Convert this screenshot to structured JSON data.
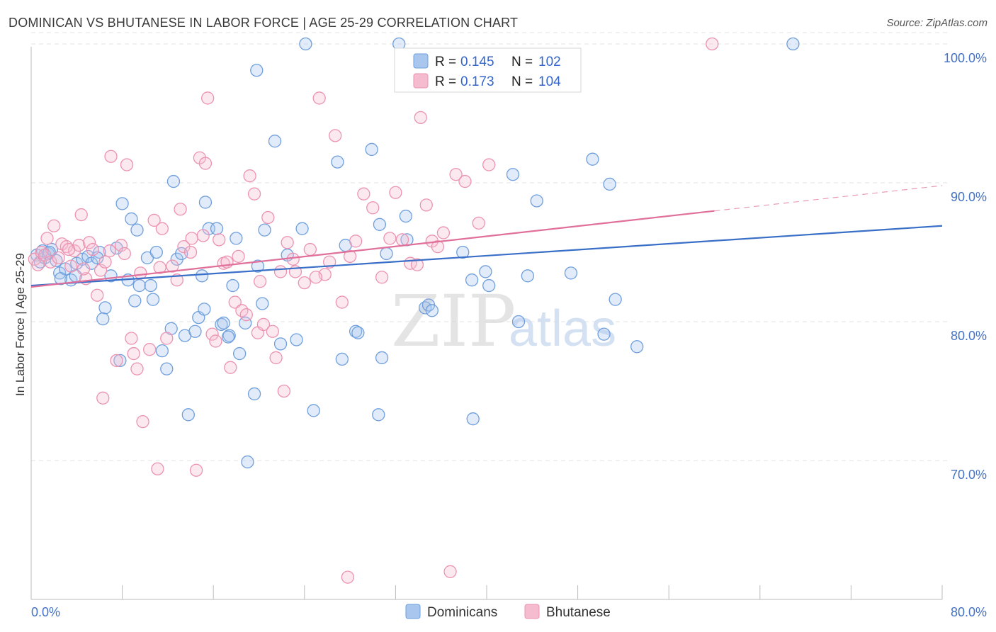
{
  "title": "DOMINICAN VS BHUTANESE IN LABOR FORCE | AGE 25-29 CORRELATION CHART",
  "source": "Source: ZipAtlas.com",
  "watermark": {
    "zip": "ZIP",
    "atlas": "atlas"
  },
  "colors": {
    "blue_fill": "#a9c7ee",
    "blue_stroke": "#6f9fdd",
    "blue_line": "#3a6fc8",
    "pink_fill": "#f5bcd0",
    "pink_stroke": "#ec93b2",
    "pink_line": "#e0709a",
    "grid": "#e3e3e3",
    "tick_text": "#4472c4"
  },
  "legend": {
    "r_label": "R =",
    "n_label": "N =",
    "rows": [
      {
        "series": "Dominicans",
        "r": "0.145",
        "n": "102"
      },
      {
        "series": "Bhutanese",
        "r": "0.173",
        "n": "104"
      }
    ]
  },
  "chart_data": {
    "type": "scatter",
    "title": "DOMINICAN VS BHUTANESE IN LABOR FORCE | AGE 25-29 CORRELATION CHART",
    "xlabel": "",
    "ylabel": "In Labor Force | Age 25-29",
    "xlim": [
      0,
      80
    ],
    "ylim": [
      60,
      100
    ],
    "x_tick_labels": [
      "0.0%",
      "80.0%"
    ],
    "y_ticks": [
      {
        "value": 70,
        "label": "70.0%"
      },
      {
        "value": 80,
        "label": "80.0%"
      },
      {
        "value": 90,
        "label": "90.0%"
      },
      {
        "value": 100,
        "label": "100.0%"
      }
    ],
    "grid": true,
    "legend_position": "top-center",
    "series": [
      {
        "name": "Dominicans",
        "trend": {
          "x": [
            0,
            80
          ],
          "y": [
            82.6,
            86.9
          ],
          "dashed_from": null
        },
        "points": [
          [
            0.5,
            84.8
          ],
          [
            0.8,
            84.3
          ],
          [
            1.0,
            85.1
          ],
          [
            1.2,
            84.6
          ],
          [
            1.5,
            84.9
          ],
          [
            1.8,
            85.2
          ],
          [
            2.2,
            84.4
          ],
          [
            2.5,
            83.5
          ],
          [
            3.0,
            83.8
          ],
          [
            3.5,
            83.0
          ],
          [
            4.0,
            84.2
          ],
          [
            4.5,
            84.5
          ],
          [
            5.0,
            84.7
          ],
          [
            5.3,
            84.2
          ],
          [
            6.0,
            85.0
          ],
          [
            6.5,
            81.0
          ],
          [
            7.0,
            83.3
          ],
          [
            7.5,
            85.3
          ],
          [
            6.3,
            80.2
          ],
          [
            8.0,
            88.5
          ],
          [
            8.5,
            83.0
          ],
          [
            8.8,
            87.4
          ],
          [
            9.3,
            86.6
          ],
          [
            9.5,
            82.6
          ],
          [
            10.2,
            84.6
          ],
          [
            10.5,
            82.6
          ],
          [
            10.7,
            81.6
          ],
          [
            11.0,
            85.0
          ],
          [
            11.5,
            77.9
          ],
          [
            11.9,
            76.6
          ],
          [
            7.8,
            77.2
          ],
          [
            12.5,
            90.1
          ],
          [
            12.3,
            79.5
          ],
          [
            12.8,
            84.5
          ],
          [
            13.2,
            84.9
          ],
          [
            13.5,
            79.0
          ],
          [
            13.8,
            73.3
          ],
          [
            14.4,
            79.3
          ],
          [
            14.7,
            80.3
          ],
          [
            15.0,
            83.3
          ],
          [
            15.3,
            88.6
          ],
          [
            15.2,
            80.9
          ],
          [
            15.6,
            86.7
          ],
          [
            16.3,
            86.7
          ],
          [
            16.7,
            79.8
          ],
          [
            16.9,
            79.9
          ],
          [
            17.4,
            79.0
          ],
          [
            17.7,
            82.6
          ],
          [
            18.0,
            86.0
          ],
          [
            18.3,
            77.7
          ],
          [
            18.8,
            79.9
          ],
          [
            19.0,
            69.9
          ],
          [
            19.6,
            74.8
          ],
          [
            19.9,
            84.0
          ],
          [
            20.3,
            81.3
          ],
          [
            20.5,
            86.6
          ],
          [
            21.4,
            93.0
          ],
          [
            21.9,
            78.4
          ],
          [
            22.5,
            84.8
          ],
          [
            23.3,
            78.7
          ],
          [
            23.8,
            86.7
          ],
          [
            24.1,
            100.0
          ],
          [
            24.8,
            73.6
          ],
          [
            26.9,
            91.5
          ],
          [
            27.3,
            77.3
          ],
          [
            27.6,
            85.5
          ],
          [
            28.5,
            79.3
          ],
          [
            28.7,
            79.2
          ],
          [
            29.9,
            92.4
          ],
          [
            30.5,
            73.3
          ],
          [
            30.6,
            87.0
          ],
          [
            30.8,
            77.4
          ],
          [
            31.2,
            84.9
          ],
          [
            32.3,
            100.0
          ],
          [
            33.0,
            85.9
          ],
          [
            32.9,
            87.6
          ],
          [
            34.6,
            81.0
          ],
          [
            34.9,
            81.2
          ],
          [
            35.2,
            80.8
          ],
          [
            37.9,
            85.0
          ],
          [
            38.7,
            83.0
          ],
          [
            38.8,
            73.0
          ],
          [
            39.9,
            83.6
          ],
          [
            40.2,
            82.6
          ],
          [
            42.3,
            90.6
          ],
          [
            42.8,
            80.0
          ],
          [
            43.6,
            83.3
          ],
          [
            44.4,
            88.7
          ],
          [
            47.4,
            83.5
          ],
          [
            49.3,
            91.7
          ],
          [
            50.3,
            79.1
          ],
          [
            50.8,
            89.9
          ],
          [
            51.3,
            81.6
          ],
          [
            53.2,
            78.2
          ],
          [
            66.9,
            100.0
          ],
          [
            5.8,
            84.6
          ],
          [
            2.6,
            83.1
          ],
          [
            3.9,
            83.3
          ],
          [
            9.1,
            81.5
          ],
          [
            1.6,
            85.0
          ],
          [
            17.3,
            78.9
          ],
          [
            19.8,
            98.1
          ]
        ]
      },
      {
        "name": "Bhutanese",
        "trend": {
          "x": [
            0,
            80
          ],
          "y": [
            82.5,
            89.8
          ],
          "dashed_from": 60
        },
        "points": [
          [
            0.3,
            84.5
          ],
          [
            0.6,
            84.1
          ],
          [
            0.9,
            85.0
          ],
          [
            1.2,
            84.8
          ],
          [
            1.4,
            86.0
          ],
          [
            1.7,
            84.3
          ],
          [
            2.0,
            86.9
          ],
          [
            2.4,
            84.6
          ],
          [
            2.7,
            85.6
          ],
          [
            3.1,
            85.4
          ],
          [
            3.5,
            84.0
          ],
          [
            3.8,
            85.1
          ],
          [
            4.2,
            85.5
          ],
          [
            4.4,
            87.7
          ],
          [
            4.8,
            83.1
          ],
          [
            5.1,
            85.7
          ],
          [
            5.4,
            85.2
          ],
          [
            5.8,
            81.9
          ],
          [
            6.1,
            83.7
          ],
          [
            6.3,
            74.5
          ],
          [
            6.5,
            84.3
          ],
          [
            7.0,
            91.9
          ],
          [
            7.5,
            77.2
          ],
          [
            7.9,
            85.5
          ],
          [
            8.4,
            91.3
          ],
          [
            8.8,
            78.8
          ],
          [
            9.0,
            77.7
          ],
          [
            9.3,
            76.6
          ],
          [
            9.6,
            83.5
          ],
          [
            9.8,
            72.8
          ],
          [
            10.4,
            78.0
          ],
          [
            10.8,
            87.3
          ],
          [
            11.1,
            69.4
          ],
          [
            11.5,
            86.7
          ],
          [
            11.9,
            78.8
          ],
          [
            12.4,
            84.0
          ],
          [
            12.8,
            83.0
          ],
          [
            13.1,
            88.1
          ],
          [
            13.4,
            85.4
          ],
          [
            14.0,
            85.0
          ],
          [
            14.5,
            69.3
          ],
          [
            14.8,
            91.8
          ],
          [
            15.1,
            86.2
          ],
          [
            15.3,
            91.4
          ],
          [
            15.5,
            96.1
          ],
          [
            15.9,
            79.1
          ],
          [
            16.2,
            78.6
          ],
          [
            16.5,
            85.9
          ],
          [
            16.9,
            84.2
          ],
          [
            17.2,
            84.3
          ],
          [
            17.5,
            76.7
          ],
          [
            17.9,
            81.4
          ],
          [
            18.2,
            84.7
          ],
          [
            18.5,
            80.8
          ],
          [
            18.9,
            80.5
          ],
          [
            19.2,
            90.5
          ],
          [
            19.6,
            89.2
          ],
          [
            19.9,
            79.2
          ],
          [
            20.4,
            79.8
          ],
          [
            20.8,
            87.5
          ],
          [
            21.2,
            79.3
          ],
          [
            21.5,
            77.4
          ],
          [
            21.9,
            83.6
          ],
          [
            22.2,
            75.0
          ],
          [
            22.5,
            85.7
          ],
          [
            23.2,
            83.6
          ],
          [
            24.0,
            82.8
          ],
          [
            24.5,
            85.2
          ],
          [
            25.3,
            96.1
          ],
          [
            25.8,
            83.4
          ],
          [
            26.2,
            84.3
          ],
          [
            26.7,
            93.4
          ],
          [
            27.3,
            81.4
          ],
          [
            27.8,
            61.6
          ],
          [
            28.5,
            85.8
          ],
          [
            29.2,
            89.2
          ],
          [
            30.0,
            88.2
          ],
          [
            30.8,
            83.2
          ],
          [
            31.5,
            86.0
          ],
          [
            32.0,
            89.3
          ],
          [
            32.6,
            85.9
          ],
          [
            33.3,
            84.2
          ],
          [
            34.2,
            94.7
          ],
          [
            34.7,
            88.4
          ],
          [
            35.2,
            85.8
          ],
          [
            35.7,
            85.4
          ],
          [
            36.2,
            86.4
          ],
          [
            36.8,
            62.0
          ],
          [
            37.3,
            90.6
          ],
          [
            38.1,
            90.1
          ],
          [
            39.3,
            87.1
          ],
          [
            40.2,
            91.3
          ],
          [
            59.8,
            100.0
          ],
          [
            8.2,
            84.9
          ],
          [
            4.6,
            83.8
          ],
          [
            23.0,
            84.5
          ],
          [
            28.0,
            84.7
          ],
          [
            33.9,
            84.1
          ],
          [
            6.9,
            85.1
          ],
          [
            11.3,
            83.9
          ],
          [
            3.3,
            85.2
          ],
          [
            14.1,
            86.0
          ],
          [
            20.1,
            82.9
          ],
          [
            25.0,
            83.2
          ]
        ]
      }
    ]
  }
}
